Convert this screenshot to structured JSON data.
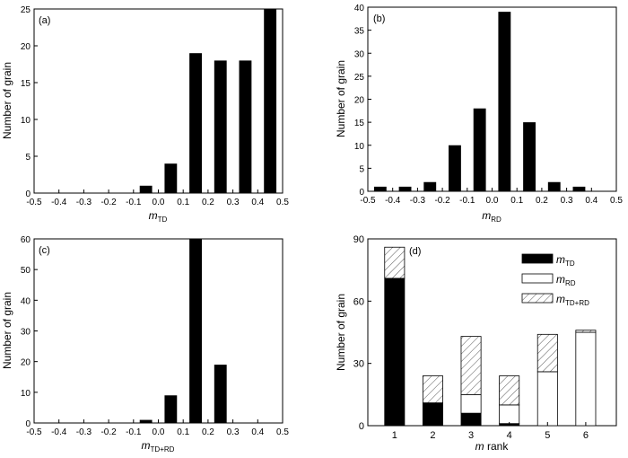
{
  "chart_data": [
    {
      "type": "bar",
      "panel": "(a)",
      "xlabel": "m",
      "xlabel_sub": "TD",
      "ylabel": "Number of grain",
      "xlim": [
        -0.5,
        0.5
      ],
      "ylim": [
        0,
        25
      ],
      "x_ticks": [
        "-0.5",
        "-0.4",
        "-0.3",
        "-0.2",
        "-0.1",
        "0.0",
        "0.1",
        "0.2",
        "0.3",
        "0.4",
        "0.5"
      ],
      "y_ticks": [
        "0",
        "5",
        "10",
        "15",
        "20",
        "25"
      ],
      "x": [
        -0.05,
        0.05,
        0.15,
        0.25,
        0.35,
        0.45
      ],
      "values": [
        1,
        4,
        19,
        18,
        18,
        25
      ]
    },
    {
      "type": "bar",
      "panel": "(b)",
      "xlabel": "m",
      "xlabel_sub": "RD",
      "ylabel": "Number of grain",
      "xlim": [
        -0.5,
        0.5
      ],
      "ylim": [
        0,
        40
      ],
      "x_ticks": [
        "-0.5",
        "-0.4",
        "-0.3",
        "-0.2",
        "-0.1",
        "0.0",
        "0.1",
        "0.2",
        "0.3",
        "0.4",
        "0.5"
      ],
      "y_ticks": [
        "0",
        "5",
        "10",
        "15",
        "20",
        "25",
        "30",
        "35",
        "40"
      ],
      "x": [
        -0.45,
        -0.35,
        -0.25,
        -0.15,
        -0.05,
        0.05,
        0.15,
        0.25,
        0.35
      ],
      "values": [
        1,
        1,
        2,
        10,
        18,
        39,
        15,
        2,
        1
      ]
    },
    {
      "type": "bar",
      "panel": "(c)",
      "xlabel": "m",
      "xlabel_sub": "TD+RD",
      "ylabel": "Number of grain",
      "xlim": [
        -0.5,
        0.5
      ],
      "ylim": [
        0,
        60
      ],
      "x_ticks": [
        "-0.5",
        "-0.4",
        "-0.3",
        "-0.2",
        "-0.1",
        "0.0",
        "0.1",
        "0.2",
        "0.3",
        "0.4",
        "0.5"
      ],
      "y_ticks": [
        "0",
        "10",
        "20",
        "30",
        "40",
        "50",
        "60"
      ],
      "x": [
        -0.05,
        0.05,
        0.15,
        0.25
      ],
      "values": [
        1,
        9,
        60,
        19
      ]
    },
    {
      "type": "bar",
      "stacked": true,
      "panel": "(d)",
      "xlabel": "m rank",
      "ylabel": "Number of grain",
      "ylim": [
        0,
        90
      ],
      "categories": [
        "1",
        "2",
        "3",
        "4",
        "5",
        "6"
      ],
      "y_ticks": [
        "0",
        "30",
        "60",
        "90"
      ],
      "legend_position": "top-right",
      "series": [
        {
          "name": "m",
          "name_sub": "TD",
          "fill": "solid",
          "color": "#000000",
          "values": [
            71,
            11,
            6,
            1,
            0,
            0
          ]
        },
        {
          "name": "m",
          "name_sub": "RD",
          "fill": "open",
          "color": "#ffffff",
          "values": [
            0,
            0,
            9,
            9,
            26,
            45
          ]
        },
        {
          "name": "m",
          "name_sub": "TD+RD",
          "fill": "hatched",
          "color": "#ffffff",
          "values": [
            15,
            13,
            28,
            14,
            18,
            1
          ]
        }
      ]
    }
  ]
}
